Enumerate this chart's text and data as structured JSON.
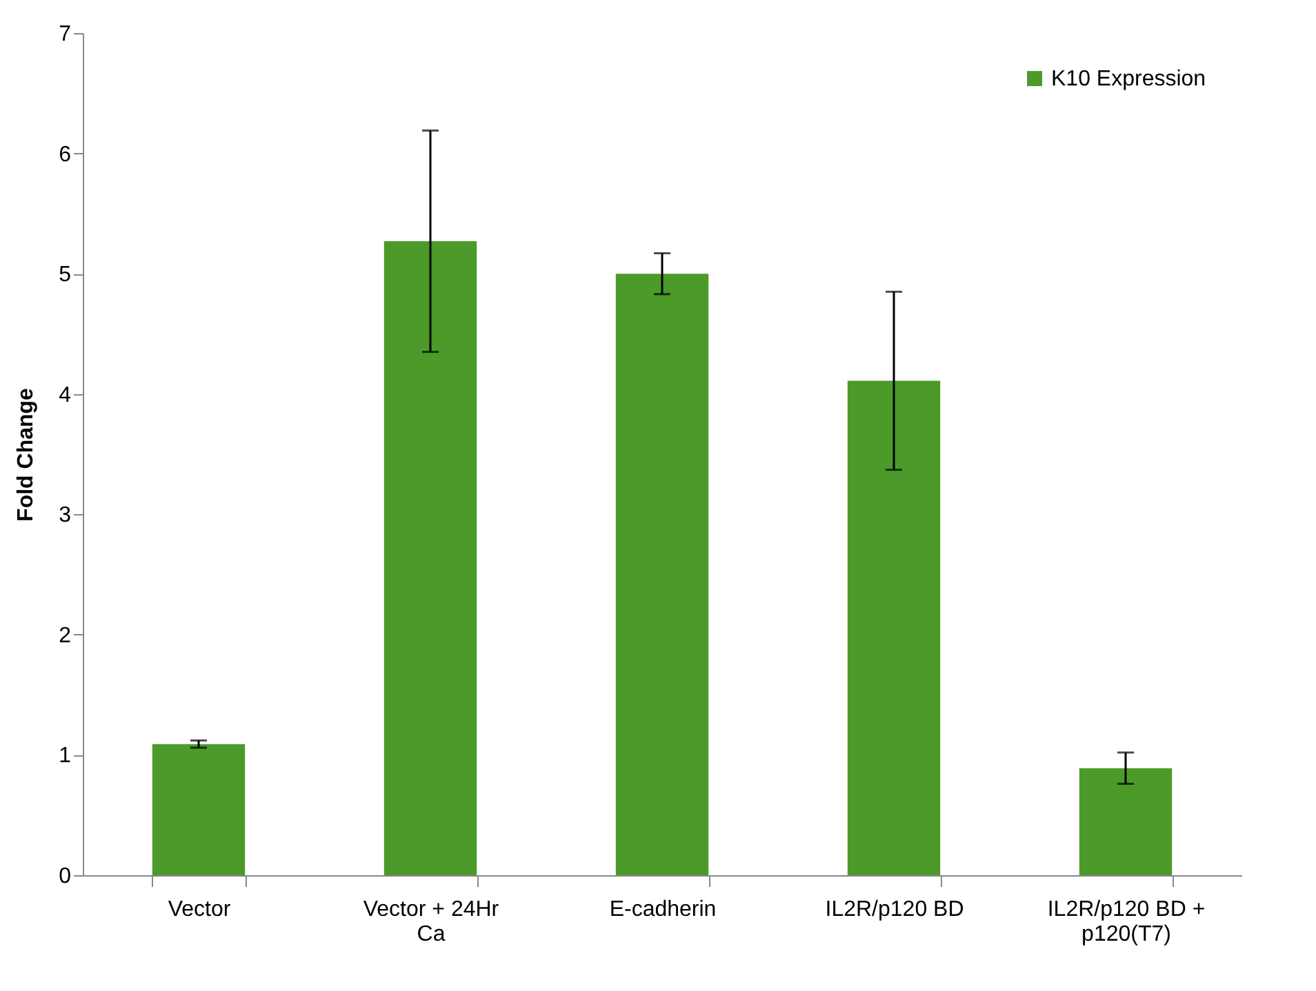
{
  "chart_data": {
    "type": "bar",
    "ylabel": "Fold Change",
    "categories": [
      "Vector",
      "Vector + 24Hr Ca",
      "E-cadherin",
      "IL2R/p120 BD",
      "IL2R/p120 BD + p120(T7)"
    ],
    "series": [
      {
        "name": "K10 Expression",
        "color": "#4c9a2a",
        "values": [
          1.09,
          5.27,
          5.0,
          4.11,
          0.89
        ],
        "errors": [
          0.03,
          0.92,
          0.17,
          0.74,
          0.13
        ]
      }
    ],
    "ylim": [
      0,
      7
    ],
    "yticks": [
      0,
      1,
      2,
      3,
      4,
      5,
      6,
      7
    ],
    "grid": false,
    "legend": "top right"
  }
}
